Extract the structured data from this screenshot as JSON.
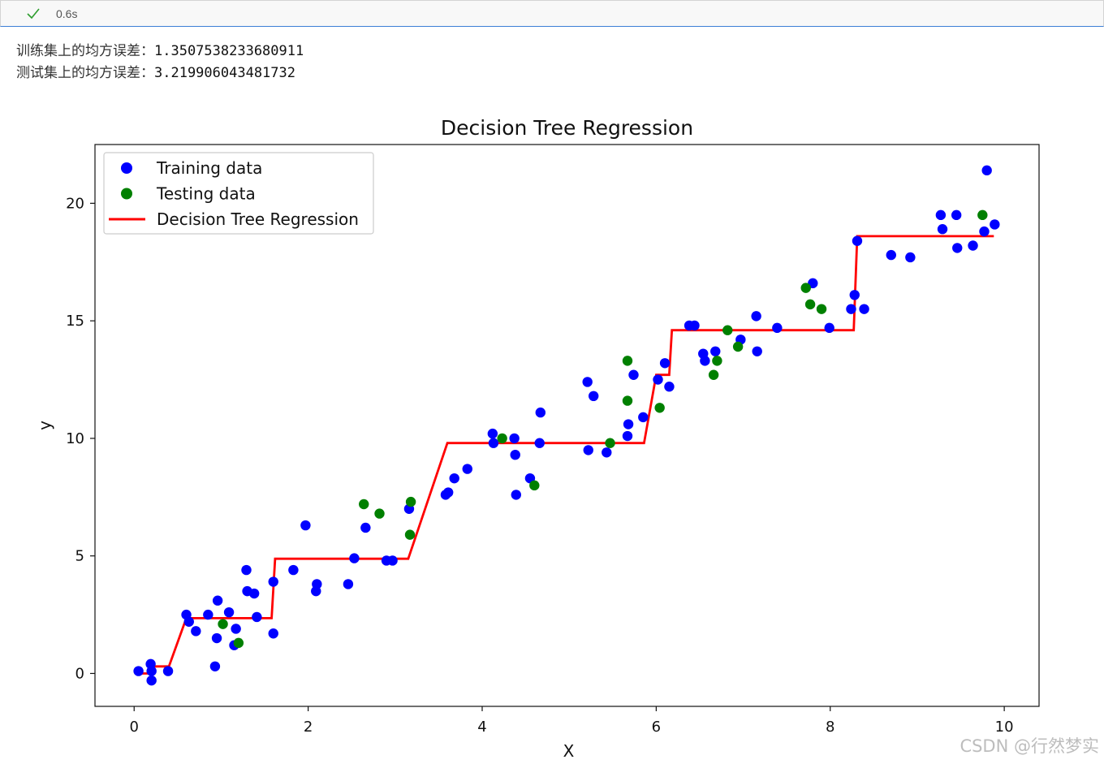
{
  "cell": {
    "status_icon": "check-icon",
    "exec_time": "0.6s",
    "status_color": "#2e9d2e"
  },
  "output": {
    "line1_label": "训练集上的均方误差：",
    "line1_value": "1.3507538233680911",
    "line2_label": "测试集上的均方误差：",
    "line2_value": "3.219906043481732"
  },
  "watermark": "CSDN @行然梦实",
  "chart_data": {
    "type": "scatter",
    "title": "Decision Tree Regression",
    "xlabel": "X",
    "ylabel": "y",
    "xlim": [
      -0.45,
      10.4
    ],
    "ylim": [
      -1.4,
      22.5
    ],
    "xticks": [
      0,
      2,
      4,
      6,
      8,
      10
    ],
    "yticks": [
      0,
      5,
      10,
      15,
      20
    ],
    "legend_position": "top-left",
    "series": [
      {
        "name": "Training data",
        "kind": "scatter",
        "color": "#0000ff",
        "x": [
          0.05,
          0.19,
          0.2,
          0.2,
          0.39,
          0.6,
          0.63,
          0.71,
          0.85,
          0.93,
          0.95,
          0.96,
          1.09,
          1.15,
          1.17,
          1.29,
          1.3,
          1.38,
          1.41,
          1.6,
          1.6,
          1.83,
          1.97,
          2.09,
          2.1,
          2.46,
          2.53,
          2.66,
          2.9,
          2.97,
          3.16,
          3.58,
          3.61,
          3.68,
          3.83,
          4.12,
          4.13,
          4.37,
          4.38,
          4.39,
          4.55,
          4.66,
          4.67,
          5.21,
          5.22,
          5.28,
          5.43,
          5.67,
          5.68,
          5.74,
          5.85,
          6.02,
          6.1,
          6.15,
          6.38,
          6.44,
          6.54,
          6.56,
          6.68,
          6.97,
          7.15,
          7.16,
          7.39,
          7.8,
          7.99,
          8.24,
          8.28,
          8.31,
          8.39,
          8.7,
          8.92,
          9.27,
          9.29,
          9.45,
          9.46,
          9.64,
          9.77,
          9.8,
          9.89
        ],
        "y": [
          0.1,
          0.4,
          0.1,
          -0.3,
          0.1,
          2.5,
          2.2,
          1.8,
          2.5,
          0.3,
          1.5,
          3.1,
          2.6,
          1.2,
          1.9,
          4.4,
          3.5,
          3.4,
          2.4,
          1.7,
          3.9,
          4.4,
          6.3,
          3.5,
          3.8,
          3.8,
          4.9,
          6.2,
          4.8,
          4.8,
          7.0,
          7.6,
          7.7,
          8.3,
          8.7,
          10.2,
          9.8,
          10.0,
          9.3,
          7.6,
          8.3,
          9.8,
          11.1,
          12.4,
          9.5,
          11.8,
          9.4,
          10.1,
          10.6,
          12.7,
          10.9,
          12.5,
          13.2,
          12.2,
          14.8,
          14.8,
          13.6,
          13.3,
          13.7,
          14.2,
          15.2,
          13.7,
          14.7,
          16.6,
          14.7,
          15.5,
          16.1,
          18.4,
          15.5,
          17.8,
          17.7,
          19.5,
          18.9,
          19.5,
          18.1,
          18.2,
          18.8,
          21.4,
          19.1
        ]
      },
      {
        "name": "Testing data",
        "kind": "scatter",
        "color": "#008000",
        "x": [
          1.02,
          1.2,
          2.64,
          2.82,
          3.18,
          3.17,
          4.23,
          4.6,
          5.47,
          5.67,
          5.67,
          6.04,
          6.66,
          6.7,
          6.82,
          6.94,
          7.72,
          7.77,
          7.9,
          9.75
        ],
        "y": [
          2.1,
          1.3,
          7.2,
          6.8,
          7.3,
          5.9,
          10.0,
          8.0,
          9.8,
          13.3,
          11.6,
          11.3,
          12.7,
          13.3,
          14.6,
          13.9,
          16.4,
          15.7,
          15.5,
          19.5
        ]
      },
      {
        "name": "Decision Tree Regression",
        "kind": "line",
        "color": "#ff0000",
        "x": [
          0.02,
          0.2,
          0.22,
          0.4,
          0.6,
          1.58,
          1.62,
          3.15,
          3.6,
          5.86,
          6.0,
          6.15,
          6.18,
          8.27,
          8.31,
          9.88
        ],
        "y": [
          0.0,
          0.0,
          0.3,
          0.3,
          2.35,
          2.35,
          4.88,
          4.88,
          9.8,
          9.8,
          12.7,
          12.7,
          14.6,
          14.6,
          18.6,
          18.6
        ]
      }
    ]
  }
}
